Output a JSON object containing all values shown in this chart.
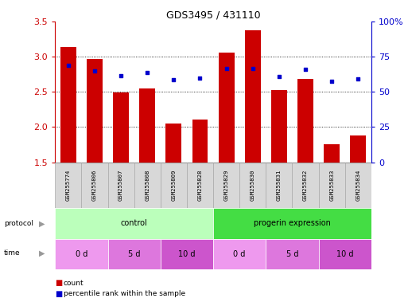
{
  "title": "GDS3495 / 431110",
  "samples": [
    "GSM255774",
    "GSM255806",
    "GSM255807",
    "GSM255808",
    "GSM255809",
    "GSM255828",
    "GSM255829",
    "GSM255830",
    "GSM255831",
    "GSM255832",
    "GSM255833",
    "GSM255834"
  ],
  "bar_values": [
    3.14,
    2.97,
    2.49,
    2.55,
    2.05,
    2.11,
    3.06,
    3.37,
    2.52,
    2.68,
    1.75,
    1.88
  ],
  "dot_values": [
    2.88,
    2.8,
    2.73,
    2.77,
    2.67,
    2.7,
    2.83,
    2.83,
    2.72,
    2.82,
    2.65,
    2.68
  ],
  "ylim": [
    1.5,
    3.5
  ],
  "right_ylim": [
    0,
    100
  ],
  "bar_color": "#cc0000",
  "dot_color": "#0000cc",
  "grid_color": "#000000",
  "title_color": "#000000",
  "protocol_groups": [
    {
      "label": "control",
      "start": 0,
      "end": 5,
      "color": "#bbffbb"
    },
    {
      "label": "progerin expression",
      "start": 6,
      "end": 11,
      "color": "#44dd44"
    }
  ],
  "time_groups": [
    {
      "label": "0 d",
      "start": 0,
      "end": 1,
      "color": "#ee99ee"
    },
    {
      "label": "5 d",
      "start": 2,
      "end": 3,
      "color": "#dd77dd"
    },
    {
      "label": "10 d",
      "start": 4,
      "end": 5,
      "color": "#cc55cc"
    },
    {
      "label": "0 d",
      "start": 6,
      "end": 7,
      "color": "#ee99ee"
    },
    {
      "label": "5 d",
      "start": 8,
      "end": 9,
      "color": "#dd77dd"
    },
    {
      "label": "10 d",
      "start": 10,
      "end": 11,
      "color": "#cc55cc"
    }
  ],
  "legend_items": [
    "count",
    "percentile rank within the sample"
  ],
  "yticks_left": [
    1.5,
    2.0,
    2.5,
    3.0,
    3.5
  ],
  "yticks_right": [
    0,
    25,
    50,
    75,
    100
  ],
  "gridlines_at": [
    2.0,
    2.5,
    3.0
  ],
  "background_color": "#ffffff",
  "left_axis_color": "#cc0000",
  "right_axis_color": "#0000cc",
  "sample_band_color": "#d8d8d8",
  "sample_band_edge": "#aaaaaa"
}
